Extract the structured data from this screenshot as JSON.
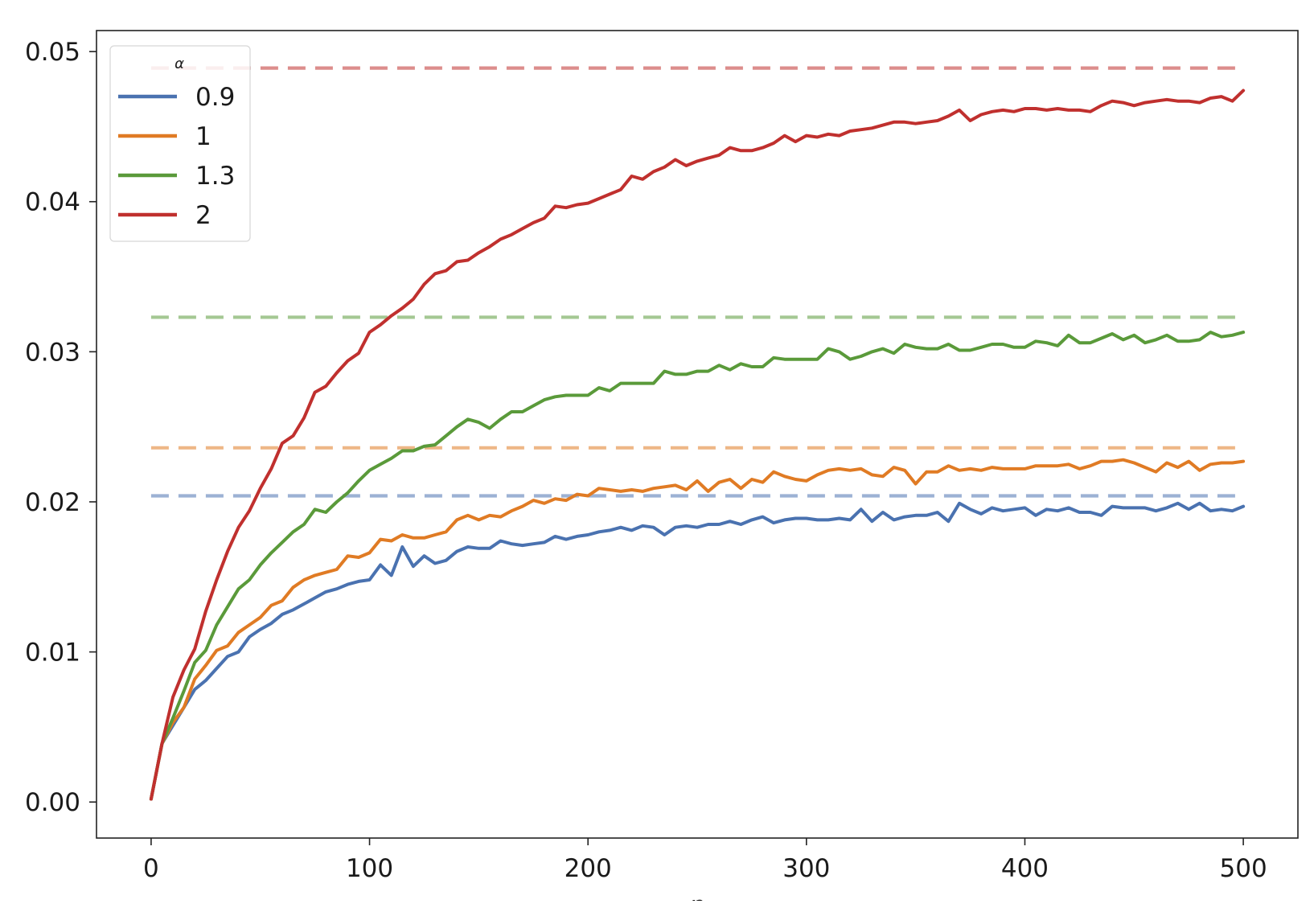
{
  "chart_data": {
    "type": "line",
    "xlabel": "n",
    "ylabel": "",
    "xlim": [
      -25,
      525
    ],
    "ylim": [
      -0.0024,
      0.0514
    ],
    "xticks": [
      0,
      100,
      200,
      300,
      400,
      500
    ],
    "yticks": [
      0.0,
      0.01,
      0.02,
      0.03,
      0.04,
      0.05
    ],
    "xtick_labels": [
      "0",
      "100",
      "200",
      "300",
      "400",
      "500"
    ],
    "ytick_labels": [
      "0.00",
      "0.01",
      "0.02",
      "0.03",
      "0.04",
      "0.05"
    ],
    "grid": false,
    "legend": {
      "title": "α",
      "position": "top-left"
    },
    "x": [
      0,
      5,
      10,
      15,
      20,
      25,
      30,
      35,
      40,
      45,
      50,
      55,
      60,
      65,
      70,
      75,
      80,
      85,
      90,
      95,
      100,
      105,
      110,
      115,
      120,
      125,
      130,
      135,
      140,
      145,
      150,
      155,
      160,
      165,
      170,
      175,
      180,
      185,
      190,
      195,
      200,
      205,
      210,
      215,
      220,
      225,
      230,
      235,
      240,
      245,
      250,
      255,
      260,
      265,
      270,
      275,
      280,
      285,
      290,
      295,
      300,
      305,
      310,
      315,
      320,
      325,
      330,
      335,
      340,
      345,
      350,
      355,
      360,
      365,
      370,
      375,
      380,
      385,
      390,
      395,
      400,
      405,
      410,
      415,
      420,
      425,
      430,
      435,
      440,
      445,
      450,
      455,
      460,
      465,
      470,
      475,
      480,
      485,
      490,
      495,
      500
    ],
    "series": [
      {
        "name": "0.9",
        "color": "#4a72b0",
        "limit": 0.0204,
        "values": [
          0.0002,
          0.0039,
          0.0051,
          0.0063,
          0.0075,
          0.0081,
          0.0089,
          0.0097,
          0.01,
          0.011,
          0.0115,
          0.0119,
          0.0125,
          0.0128,
          0.0132,
          0.0136,
          0.014,
          0.0142,
          0.0145,
          0.0147,
          0.0148,
          0.0158,
          0.0151,
          0.017,
          0.0157,
          0.0164,
          0.0159,
          0.0161,
          0.0167,
          0.017,
          0.0169,
          0.0169,
          0.0174,
          0.0172,
          0.0171,
          0.0172,
          0.0173,
          0.0177,
          0.0175,
          0.0177,
          0.0178,
          0.018,
          0.0181,
          0.0183,
          0.0181,
          0.0184,
          0.0183,
          0.0178,
          0.0183,
          0.0184,
          0.0183,
          0.0185,
          0.0185,
          0.0187,
          0.0185,
          0.0188,
          0.019,
          0.0186,
          0.0188,
          0.0189,
          0.0189,
          0.0188,
          0.0188,
          0.0189,
          0.0188,
          0.0195,
          0.0187,
          0.0193,
          0.0188,
          0.019,
          0.0191,
          0.0191,
          0.0193,
          0.0187,
          0.0199,
          0.0195,
          0.0192,
          0.0196,
          0.0194,
          0.0195,
          0.0196,
          0.0191,
          0.0195,
          0.0194,
          0.0196,
          0.0193,
          0.0193,
          0.0191,
          0.0197,
          0.0196,
          0.0196,
          0.0196,
          0.0194,
          0.0196,
          0.0199,
          0.0195,
          0.0199,
          0.0194,
          0.0195,
          0.0194,
          0.0197
        ]
      },
      {
        "name": "1",
        "color": "#e07b24",
        "limit": 0.0236,
        "values": [
          0.0002,
          0.0039,
          0.0053,
          0.0063,
          0.0082,
          0.0091,
          0.0101,
          0.0104,
          0.0113,
          0.0118,
          0.0123,
          0.0131,
          0.0134,
          0.0143,
          0.0148,
          0.0151,
          0.0153,
          0.0155,
          0.0164,
          0.0163,
          0.0166,
          0.0175,
          0.0174,
          0.0178,
          0.0176,
          0.0176,
          0.0178,
          0.018,
          0.0188,
          0.0191,
          0.0188,
          0.0191,
          0.019,
          0.0194,
          0.0197,
          0.0201,
          0.0199,
          0.0202,
          0.0201,
          0.0205,
          0.0204,
          0.0209,
          0.0208,
          0.0207,
          0.0208,
          0.0207,
          0.0209,
          0.021,
          0.0211,
          0.0208,
          0.0214,
          0.0207,
          0.0213,
          0.0215,
          0.0209,
          0.0215,
          0.0213,
          0.022,
          0.0217,
          0.0215,
          0.0214,
          0.0218,
          0.0221,
          0.0222,
          0.0221,
          0.0222,
          0.0218,
          0.0217,
          0.0223,
          0.0221,
          0.0212,
          0.022,
          0.022,
          0.0224,
          0.0221,
          0.0222,
          0.0221,
          0.0223,
          0.0222,
          0.0222,
          0.0222,
          0.0224,
          0.0224,
          0.0224,
          0.0225,
          0.0222,
          0.0224,
          0.0227,
          0.0227,
          0.0228,
          0.0226,
          0.0223,
          0.022,
          0.0226,
          0.0223,
          0.0227,
          0.0221,
          0.0225,
          0.0226,
          0.0226,
          0.0227
        ]
      },
      {
        "name": "1.3",
        "color": "#5a9a3a",
        "limit": 0.0323,
        "values": [
          0.0002,
          0.0039,
          0.0056,
          0.0074,
          0.0093,
          0.0101,
          0.0118,
          0.013,
          0.0142,
          0.0148,
          0.0158,
          0.0166,
          0.0173,
          0.018,
          0.0185,
          0.0195,
          0.0193,
          0.02,
          0.0206,
          0.0214,
          0.0221,
          0.0225,
          0.0229,
          0.0234,
          0.0234,
          0.0237,
          0.0238,
          0.0244,
          0.025,
          0.0255,
          0.0253,
          0.0249,
          0.0255,
          0.026,
          0.026,
          0.0264,
          0.0268,
          0.027,
          0.0271,
          0.0271,
          0.0271,
          0.0276,
          0.0274,
          0.0279,
          0.0279,
          0.0279,
          0.0279,
          0.0287,
          0.0285,
          0.0285,
          0.0287,
          0.0287,
          0.0291,
          0.0288,
          0.0292,
          0.029,
          0.029,
          0.0296,
          0.0295,
          0.0295,
          0.0295,
          0.0295,
          0.0302,
          0.03,
          0.0295,
          0.0297,
          0.03,
          0.0302,
          0.0299,
          0.0305,
          0.0303,
          0.0302,
          0.0302,
          0.0305,
          0.0301,
          0.0301,
          0.0303,
          0.0305,
          0.0305,
          0.0303,
          0.0303,
          0.0307,
          0.0306,
          0.0304,
          0.0311,
          0.0306,
          0.0306,
          0.0309,
          0.0312,
          0.0308,
          0.0311,
          0.0306,
          0.0308,
          0.0311,
          0.0307,
          0.0307,
          0.0308,
          0.0313,
          0.031,
          0.0311,
          0.0313
        ]
      },
      {
        "name": "2",
        "color": "#c0302e",
        "limit": 0.0489,
        "values": [
          0.0002,
          0.0039,
          0.007,
          0.0088,
          0.0102,
          0.0127,
          0.0148,
          0.0167,
          0.0183,
          0.0194,
          0.0209,
          0.0222,
          0.0239,
          0.0244,
          0.0256,
          0.0273,
          0.0277,
          0.0286,
          0.0294,
          0.0299,
          0.0313,
          0.0318,
          0.0324,
          0.0329,
          0.0335,
          0.0345,
          0.0352,
          0.0354,
          0.036,
          0.0361,
          0.0366,
          0.037,
          0.0375,
          0.0378,
          0.0382,
          0.0386,
          0.0389,
          0.0397,
          0.0396,
          0.0398,
          0.0399,
          0.0402,
          0.0405,
          0.0408,
          0.0417,
          0.0415,
          0.042,
          0.0423,
          0.0428,
          0.0424,
          0.0427,
          0.0429,
          0.0431,
          0.0436,
          0.0434,
          0.0434,
          0.0436,
          0.0439,
          0.0444,
          0.044,
          0.0444,
          0.0443,
          0.0445,
          0.0444,
          0.0447,
          0.0448,
          0.0449,
          0.0451,
          0.0453,
          0.0453,
          0.0452,
          0.0453,
          0.0454,
          0.0457,
          0.0461,
          0.0454,
          0.0458,
          0.046,
          0.0461,
          0.046,
          0.0462,
          0.0462,
          0.0461,
          0.0462,
          0.0461,
          0.0461,
          0.046,
          0.0464,
          0.0467,
          0.0466,
          0.0464,
          0.0466,
          0.0467,
          0.0468,
          0.0467,
          0.0467,
          0.0466,
          0.0469,
          0.047,
          0.0467,
          0.0474
        ]
      }
    ]
  }
}
